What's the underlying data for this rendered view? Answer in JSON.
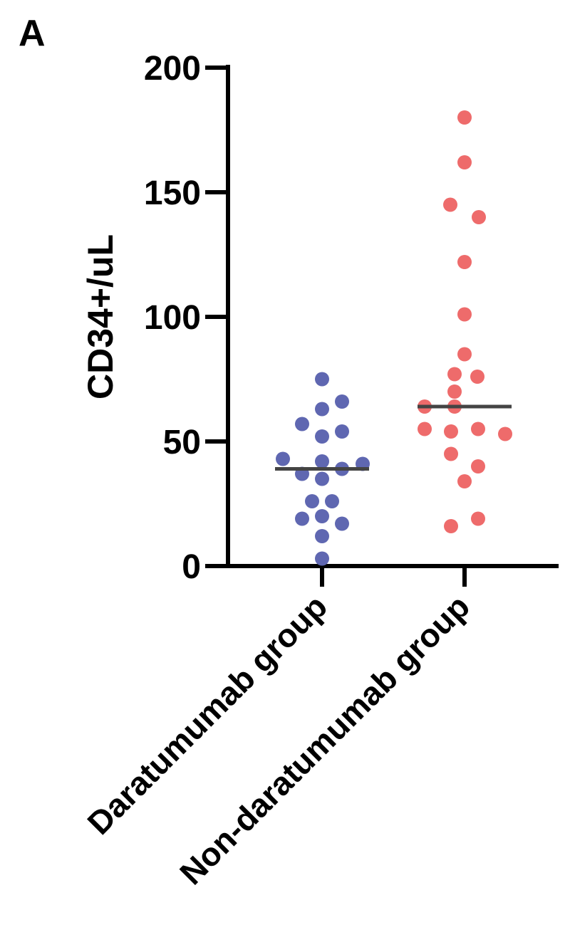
{
  "panel_label": "A",
  "chart_data": {
    "type": "scatter",
    "ylabel": "CD34+/uL",
    "ylim": [
      0,
      200
    ],
    "yticks": [
      0,
      50,
      100,
      150,
      200
    ],
    "categories": [
      "Daratumumab group",
      "Non-daratumumab group"
    ],
    "series": [
      {
        "category": "Daratumumab group",
        "color": "#5f67b1",
        "median": 39,
        "points": [
          {
            "offset": 0,
            "y": 75
          },
          {
            "offset": 0.28,
            "y": 66
          },
          {
            "offset": 0,
            "y": 63
          },
          {
            "offset": -0.28,
            "y": 57
          },
          {
            "offset": 0.28,
            "y": 54
          },
          {
            "offset": 0,
            "y": 52
          },
          {
            "offset": -0.55,
            "y": 43
          },
          {
            "offset": 0,
            "y": 42
          },
          {
            "offset": 0.57,
            "y": 41
          },
          {
            "offset": 0.28,
            "y": 39
          },
          {
            "offset": -0.28,
            "y": 37
          },
          {
            "offset": 0,
            "y": 35
          },
          {
            "offset": -0.14,
            "y": 26
          },
          {
            "offset": 0.14,
            "y": 26
          },
          {
            "offset": 0,
            "y": 20
          },
          {
            "offset": -0.28,
            "y": 19
          },
          {
            "offset": 0.28,
            "y": 17
          },
          {
            "offset": 0,
            "y": 12
          },
          {
            "offset": 0,
            "y": 3
          }
        ]
      },
      {
        "category": "Non-daratumumab group",
        "color": "#ee6b6b",
        "median": 64,
        "points": [
          {
            "offset": 0,
            "y": 180
          },
          {
            "offset": 0,
            "y": 162
          },
          {
            "offset": -0.2,
            "y": 145
          },
          {
            "offset": 0.2,
            "y": 140
          },
          {
            "offset": 0,
            "y": 122
          },
          {
            "offset": 0,
            "y": 101
          },
          {
            "offset": 0,
            "y": 85
          },
          {
            "offset": -0.14,
            "y": 77
          },
          {
            "offset": 0.18,
            "y": 76
          },
          {
            "offset": -0.14,
            "y": 70
          },
          {
            "offset": -0.56,
            "y": 64
          },
          {
            "offset": -0.14,
            "y": 64
          },
          {
            "offset": -0.56,
            "y": 55
          },
          {
            "offset": 0.19,
            "y": 55
          },
          {
            "offset": -0.19,
            "y": 54
          },
          {
            "offset": 0.57,
            "y": 53
          },
          {
            "offset": -0.19,
            "y": 45
          },
          {
            "offset": 0.19,
            "y": 40
          },
          {
            "offset": 0,
            "y": 34
          },
          {
            "offset": 0.19,
            "y": 19
          },
          {
            "offset": -0.19,
            "y": 16
          }
        ]
      }
    ],
    "median_color": "#444444"
  }
}
